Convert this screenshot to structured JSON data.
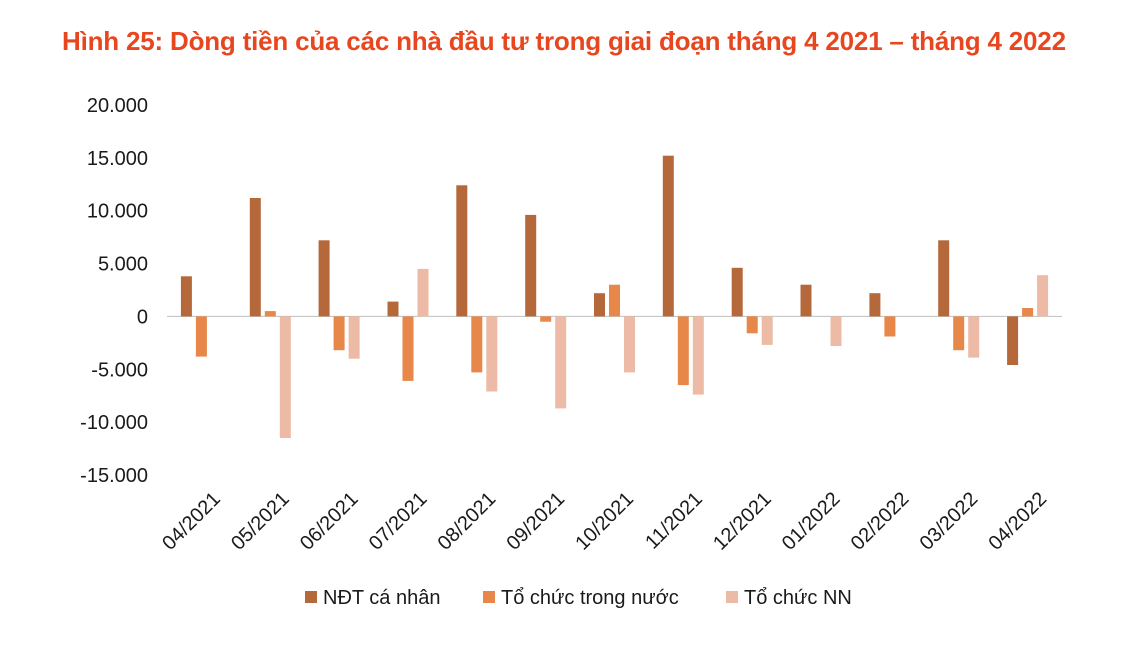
{
  "chart_data": {
    "type": "bar",
    "title": "Hình 25: Dòng tiền của các nhà đầu tư trong giai đoạn tháng 4 2021 – tháng 4 2022",
    "xlabel": "",
    "ylabel": "",
    "ylim": [
      -15000,
      20000
    ],
    "yticks": [
      {
        "value": 20000,
        "label": "20.000"
      },
      {
        "value": 15000,
        "label": "15.000"
      },
      {
        "value": 10000,
        "label": "10.000"
      },
      {
        "value": 5000,
        "label": "5.000"
      },
      {
        "value": 0,
        "label": "0"
      },
      {
        "value": -5000,
        "label": "-5.000"
      },
      {
        "value": -10000,
        "label": "-10.000"
      },
      {
        "value": -15000,
        "label": "-15.000"
      }
    ],
    "categories": [
      "04/2021",
      "05/2021",
      "06/2021",
      "07/2021",
      "08/2021",
      "09/2021",
      "10/2021",
      "11/2021",
      "12/2021",
      "01/2022",
      "02/2022",
      "03/2022",
      "04/2022"
    ],
    "series": [
      {
        "name": "NĐT cá nhân",
        "color": "#B5683A",
        "values": [
          3800,
          11200,
          7200,
          1400,
          12400,
          9600,
          2200,
          15200,
          4600,
          3000,
          2200,
          7200,
          -4600
        ]
      },
      {
        "name": "Tổ chức trong nước",
        "color": "#E8874A",
        "values": [
          -3800,
          500,
          -3200,
          -6100,
          -5300,
          -500,
          3000,
          -6500,
          -1600,
          0,
          -1900,
          -3200,
          800
        ]
      },
      {
        "name": "Tổ chức NN",
        "color": "#EDBBA5",
        "values": [
          0,
          -11500,
          -4000,
          4500,
          -7100,
          -8700,
          -5300,
          -7400,
          -2700,
          -2800,
          0,
          -3900,
          3900
        ]
      }
    ],
    "legend_position": "bottom"
  }
}
